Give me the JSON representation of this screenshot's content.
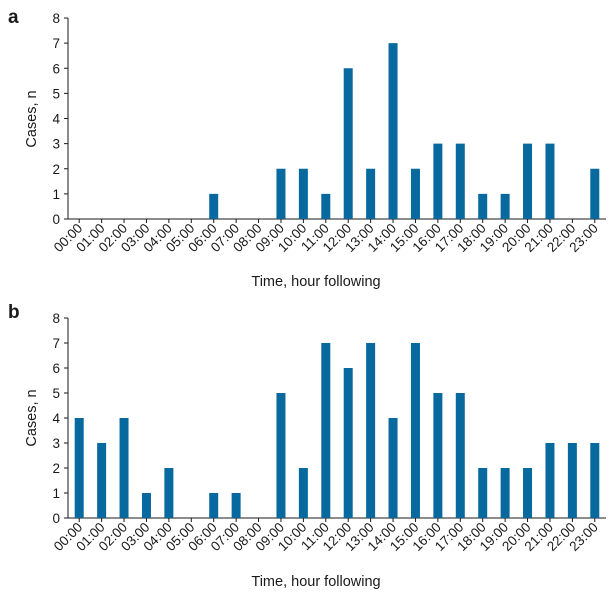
{
  "chart_data": [
    {
      "type": "bar",
      "panel_label": "a",
      "categories": [
        "00:00",
        "01:00",
        "02:00",
        "03:00",
        "04:00",
        "05:00",
        "06:00",
        "07:00",
        "08:00",
        "09:00",
        "10:00",
        "11:00",
        "12:00",
        "13:00",
        "14:00",
        "15:00",
        "16:00",
        "17:00",
        "18:00",
        "19:00",
        "20:00",
        "21:00",
        "22:00",
        "23:00"
      ],
      "values": [
        0,
        0,
        0,
        0,
        0,
        0,
        1,
        0,
        0,
        2,
        2,
        1,
        6,
        2,
        7,
        2,
        3,
        3,
        1,
        1,
        3,
        3,
        0,
        2
      ],
      "xlabel": "Time, hour following",
      "ylabel": "Cases, n",
      "ylim": [
        0,
        8
      ],
      "yticks": [
        0,
        1,
        2,
        3,
        4,
        5,
        6,
        7,
        8
      ],
      "color": "#08699f",
      "grid": false,
      "legend": "none"
    },
    {
      "type": "bar",
      "panel_label": "b",
      "categories": [
        "00:00",
        "01:00",
        "02:00",
        "03:00",
        "04:00",
        "05:00",
        "06:00",
        "07:00",
        "08:00",
        "09:00",
        "10:00",
        "11:00",
        "12:00",
        "13:00",
        "14:00",
        "15:00",
        "16:00",
        "17:00",
        "18:00",
        "19:00",
        "20:00",
        "21:00",
        "22:00",
        "23:00"
      ],
      "values": [
        4,
        3,
        4,
        1,
        2,
        0,
        1,
        1,
        0,
        5,
        2,
        7,
        6,
        7,
        4,
        7,
        5,
        5,
        2,
        2,
        2,
        3,
        3,
        3
      ],
      "xlabel": "Time, hour following",
      "ylabel": "Cases, n",
      "ylim": [
        0,
        8
      ],
      "yticks": [
        0,
        1,
        2,
        3,
        4,
        5,
        6,
        7,
        8
      ],
      "color": "#08699f",
      "grid": false,
      "legend": "none"
    }
  ]
}
